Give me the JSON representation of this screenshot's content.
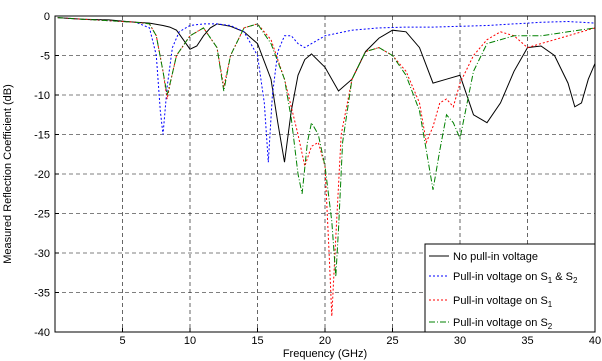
{
  "chart_data": {
    "type": "line",
    "xlabel": "Frequency (GHz)",
    "ylabel": "Measured Reflection Coefficient (dB)",
    "xlim": [
      0,
      40
    ],
    "ylim": [
      -40,
      0
    ],
    "xticks": [
      5,
      10,
      15,
      20,
      25,
      30,
      35,
      40
    ],
    "yticks": [
      0,
      -5,
      -10,
      -15,
      -20,
      -25,
      -30,
      -35,
      -40
    ],
    "grid": true,
    "legend_position": "bottom-right",
    "series": [
      {
        "name": "No pull-in voltage",
        "legend": {
          "main": "No pull-in voltage",
          "sub": "",
          "tail": ""
        },
        "color": "#000000",
        "dash": "solid",
        "x": [
          0.2,
          2,
          4,
          6,
          7,
          8,
          8.5,
          9,
          9.5,
          10,
          10.5,
          11,
          11.5,
          12,
          13,
          14,
          15,
          16,
          16.5,
          17,
          17.5,
          18,
          18.5,
          19,
          20,
          21,
          22,
          23,
          24,
          25,
          26,
          27,
          28,
          29,
          30,
          31,
          32,
          33,
          34,
          35,
          36,
          37,
          38,
          38.5,
          39,
          39.5,
          40
        ],
        "y": [
          -0.2,
          -0.4,
          -0.5,
          -0.8,
          -0.9,
          -1.2,
          -1.4,
          -1.8,
          -3.0,
          -4.2,
          -3.8,
          -2.5,
          -1.5,
          -1.0,
          -1.3,
          -2.0,
          -3.5,
          -8.0,
          -13.5,
          -18.5,
          -12.0,
          -7.5,
          -5.5,
          -4.8,
          -6.5,
          -9.5,
          -8.0,
          -4.5,
          -2.8,
          -1.8,
          -2.0,
          -4.0,
          -8.5,
          -8.0,
          -7.5,
          -12.5,
          -13.5,
          -11.0,
          -7.0,
          -4.0,
          -3.8,
          -5.0,
          -8.5,
          -11.5,
          -11.0,
          -8.0,
          -6.0
        ]
      },
      {
        "name": "Pull-in voltage on S1 & S2",
        "legend": {
          "main": "Pull-in voltage on S",
          "sub": "1",
          "tail": " & S",
          "sub2": "2"
        },
        "color": "#0000ff",
        "dash": "2,2",
        "x": [
          0.2,
          2,
          4,
          6,
          7,
          7.5,
          7.8,
          8.0,
          8.3,
          8.7,
          9.2,
          10,
          11,
          12,
          13,
          14,
          15,
          15.5,
          15.8,
          16.1,
          16.5,
          17,
          17.5,
          18,
          18.5,
          19,
          20,
          22,
          24,
          26,
          28,
          30,
          32,
          34,
          36,
          38,
          40
        ],
        "y": [
          -0.2,
          -0.4,
          -0.6,
          -0.8,
          -1.5,
          -5.0,
          -12.0,
          -15.0,
          -9.0,
          -4.0,
          -2.0,
          -1.2,
          -1.0,
          -1.0,
          -1.2,
          -2.0,
          -5.0,
          -11.0,
          -18.5,
          -10.0,
          -4.5,
          -2.5,
          -2.5,
          -3.5,
          -4.0,
          -3.5,
          -2.5,
          -1.8,
          -1.5,
          -1.4,
          -1.4,
          -1.3,
          -1.2,
          -1.0,
          -0.8,
          -0.7,
          -0.9
        ]
      },
      {
        "name": "Pull-in voltage on S1",
        "legend": {
          "main": "Pull-in voltage on S",
          "sub": "1",
          "tail": ""
        },
        "color": "#ff0000",
        "dash": "2,2",
        "x": [
          0.2,
          2,
          4,
          6,
          7,
          7.5,
          8.0,
          8.3,
          8.6,
          9,
          10,
          11,
          12,
          12.5,
          13,
          14,
          15,
          16,
          17,
          18,
          18.5,
          19,
          19.5,
          20,
          20.3,
          20.5,
          20.8,
          21.2,
          22,
          23,
          24,
          25,
          26,
          27,
          27.5,
          28,
          28.5,
          29,
          29.5,
          30,
          31,
          32,
          33,
          34,
          35,
          36,
          38,
          40
        ],
        "y": [
          -0.2,
          -0.4,
          -0.6,
          -0.8,
          -1.0,
          -2.5,
          -7.0,
          -10.5,
          -8.0,
          -5.0,
          -2.5,
          -1.5,
          -4.0,
          -9.0,
          -5.0,
          -1.5,
          -1.0,
          -3.0,
          -8.0,
          -15.0,
          -19.0,
          -16.5,
          -16.0,
          -19.0,
          -30.0,
          -38.0,
          -28.0,
          -15.0,
          -8.0,
          -4.5,
          -4.0,
          -5.0,
          -7.0,
          -11.0,
          -16.0,
          -14.0,
          -11.0,
          -10.5,
          -11.5,
          -8.5,
          -5.0,
          -3.0,
          -2.0,
          -2.5,
          -4.0,
          -3.5,
          -2.5,
          -1.5
        ]
      },
      {
        "name": "Pull-in voltage on S2",
        "legend": {
          "main": "Pull-in voltage on S",
          "sub": "2",
          "tail": ""
        },
        "color": "#008000",
        "dash": "6,2,1,2",
        "x": [
          0.2,
          2,
          4,
          6,
          7,
          7.5,
          8.0,
          8.3,
          8.6,
          9,
          10,
          11,
          12,
          12.5,
          13,
          14,
          15,
          16,
          17,
          17.5,
          18,
          18.3,
          18.7,
          19,
          19.5,
          20,
          20.5,
          20.8,
          21,
          21.3,
          22,
          23,
          24,
          25,
          26,
          27,
          27.5,
          28,
          28.5,
          29,
          29.5,
          30,
          31,
          32,
          34,
          36,
          38,
          40
        ],
        "y": [
          -0.2,
          -0.4,
          -0.6,
          -0.8,
          -1.0,
          -2.5,
          -7.0,
          -10.0,
          -8.0,
          -5.0,
          -2.5,
          -1.5,
          -4.0,
          -9.5,
          -5.0,
          -1.5,
          -1.0,
          -3.5,
          -8.0,
          -13.0,
          -20.0,
          -22.5,
          -16.0,
          -13.5,
          -15.0,
          -19.0,
          -26.0,
          -33.0,
          -27.0,
          -16.0,
          -8.0,
          -4.5,
          -4.0,
          -5.0,
          -7.5,
          -12.0,
          -17.0,
          -22.0,
          -17.0,
          -12.5,
          -13.5,
          -15.5,
          -7.0,
          -3.5,
          -2.5,
          -2.5,
          -2.0,
          -1.5
        ]
      }
    ]
  }
}
